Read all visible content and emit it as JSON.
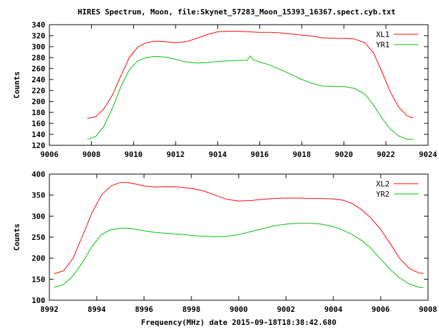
{
  "title": "HIRES Spectrum, Moon, file:Skynet_57283_Moon_15393_16367.spect.cyb.txt",
  "xlabel": "Frequency(MHz) date 2015-09-18T18:38:42.680",
  "colors": {
    "red": "#ff0000",
    "green": "#00c000",
    "axis": "#000000"
  },
  "chart_data": [
    {
      "type": "line",
      "title": "HIRES Spectrum, Moon, file:Skynet_57283_Moon_15393_16367.spect.cyb.txt",
      "xlabel": "",
      "ylabel": "Counts",
      "xlim": [
        9006,
        9024
      ],
      "ylim": [
        120,
        340
      ],
      "xticks": [
        9006,
        9008,
        9010,
        9012,
        9014,
        9016,
        9018,
        9020,
        9022,
        9024
      ],
      "yticks": [
        120,
        140,
        160,
        180,
        200,
        220,
        240,
        260,
        280,
        300,
        320,
        340
      ],
      "legend": "top-right",
      "grid": false,
      "series": [
        {
          "name": "XL1",
          "color": "#ff0000",
          "x": [
            9007.8,
            9008.2,
            9008.6,
            9009.0,
            9009.4,
            9009.8,
            9010.2,
            9010.6,
            9011.0,
            9011.5,
            9012.0,
            9012.5,
            9013.0,
            9013.5,
            9014.0,
            9014.5,
            9015.0,
            9015.5,
            9016.0,
            9016.5,
            9017.0,
            9017.5,
            9018.0,
            9018.5,
            9019.0,
            9019.5,
            9020.0,
            9020.5,
            9021.0,
            9021.4,
            9021.8,
            9022.2,
            9022.6,
            9023.0,
            9023.3
          ],
          "values": [
            169,
            172,
            187,
            212,
            247,
            280,
            299,
            307,
            310,
            309,
            307,
            309,
            315,
            322,
            327,
            328,
            328,
            327,
            326,
            326,
            325,
            323,
            321,
            319,
            316,
            315,
            315,
            314,
            307,
            289,
            255,
            218,
            190,
            174,
            170
          ]
        },
        {
          "name": "YR1",
          "color": "#00c000",
          "x": [
            9007.8,
            9008.2,
            9008.6,
            9009.0,
            9009.4,
            9009.8,
            9010.2,
            9010.6,
            9011.0,
            9011.5,
            9012.0,
            9012.5,
            9013.0,
            9013.5,
            9014.0,
            9014.5,
            9015.0,
            9015.4,
            9015.55,
            9015.7,
            9016.0,
            9016.5,
            9017.0,
            9017.5,
            9018.0,
            9018.5,
            9019.0,
            9019.5,
            9020.0,
            9020.5,
            9021.0,
            9021.4,
            9021.8,
            9022.2,
            9022.6,
            9023.0,
            9023.3
          ],
          "values": [
            131,
            136,
            155,
            188,
            227,
            258,
            274,
            280,
            282,
            281,
            277,
            272,
            270,
            271,
            273,
            274,
            275,
            275,
            283,
            276,
            272,
            266,
            258,
            249,
            240,
            233,
            228,
            227,
            227,
            224,
            213,
            194,
            170,
            150,
            137,
            131,
            131
          ]
        }
      ]
    },
    {
      "type": "line",
      "xlabel": "Frequency(MHz) date 2015-09-18T18:38:42.680",
      "ylabel": "Counts",
      "xlim": [
        8992,
        9008
      ],
      "ylim": [
        100,
        400
      ],
      "xticks": [
        8992,
        8994,
        8996,
        8998,
        9000,
        9002,
        9004,
        9006,
        9008
      ],
      "yticks": [
        100,
        150,
        200,
        250,
        300,
        350,
        400
      ],
      "legend": "top-right",
      "grid": false,
      "series": [
        {
          "name": "XL2",
          "color": "#ff0000",
          "x": [
            8992.2,
            8992.6,
            8993.0,
            8993.4,
            8993.8,
            8994.2,
            8994.6,
            8995.0,
            8995.3,
            8995.6,
            8996.0,
            8996.5,
            8997.0,
            8997.5,
            8998.0,
            8998.5,
            8999.0,
            8999.5,
            9000.0,
            9000.5,
            9001.0,
            9001.5,
            9002.0,
            9002.5,
            9003.0,
            9003.5,
            9004.0,
            9004.4,
            9004.8,
            9005.2,
            9005.6,
            9006.0,
            9006.4,
            9006.8,
            9007.2,
            9007.6,
            9007.8
          ],
          "values": [
            163,
            170,
            200,
            253,
            308,
            350,
            372,
            380,
            380,
            377,
            372,
            369,
            370,
            369,
            366,
            360,
            350,
            340,
            336,
            337,
            340,
            342,
            343,
            343,
            342,
            342,
            341,
            338,
            330,
            315,
            295,
            268,
            235,
            200,
            176,
            165,
            164
          ]
        },
        {
          "name": "YR2",
          "color": "#00c000",
          "x": [
            8992.2,
            8992.6,
            8993.0,
            8993.4,
            8993.8,
            8994.2,
            8994.6,
            8995.0,
            8995.3,
            8995.6,
            8996.0,
            8996.5,
            8997.0,
            8997.5,
            8998.0,
            8998.5,
            8999.0,
            8999.5,
            9000.0,
            9000.5,
            9001.0,
            9001.5,
            9002.0,
            9002.5,
            9003.0,
            9003.5,
            9004.0,
            9004.4,
            9004.8,
            9005.2,
            9005.6,
            9006.0,
            9006.4,
            9006.8,
            9007.2,
            9007.6,
            9007.8
          ],
          "values": [
            131,
            137,
            158,
            190,
            228,
            256,
            268,
            271,
            271,
            269,
            265,
            261,
            259,
            257,
            254,
            252,
            251,
            252,
            256,
            263,
            270,
            277,
            281,
            283,
            283,
            281,
            275,
            267,
            256,
            242,
            223,
            198,
            173,
            153,
            139,
            131,
            130
          ]
        }
      ]
    }
  ]
}
